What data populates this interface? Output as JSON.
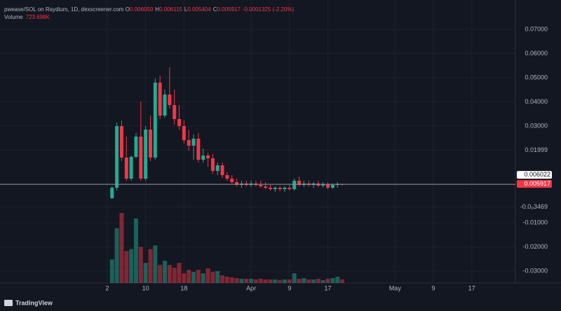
{
  "header": {
    "symbol": "pwease/SOL on Raydium, 1D, dexscreener.com",
    "ohlc": [
      {
        "key": "O",
        "value": "0.006050"
      },
      {
        "key": "H",
        "value": "0.006115"
      },
      {
        "key": "L",
        "value": "0.005404"
      },
      {
        "key": "C",
        "value": "0.005917"
      }
    ],
    "change": "-0.0001325 (-2.20%)",
    "volume_label": "Volume",
    "volume_value": "723.698K"
  },
  "price_labels": [
    "0.006022",
    "0.005917"
  ],
  "watermark": "TradingView",
  "chart_data": {
    "type": "candlestick",
    "x": [
      3,
      4,
      5,
      6,
      7,
      8,
      9,
      10,
      11,
      12,
      13,
      14,
      15,
      16,
      17,
      18,
      19,
      20,
      21,
      22,
      23,
      24,
      25,
      26,
      27,
      28,
      29,
      30,
      31,
      32,
      33,
      34,
      35,
      36,
      37,
      38,
      39,
      40,
      41,
      42,
      43,
      44,
      45,
      46,
      47,
      48,
      49,
      50,
      51
    ],
    "open": [
      0.00014,
      0.00449,
      0.03,
      0.01696,
      0.00826,
      0.01725,
      0.02565,
      0.00826,
      0.02855,
      0.01696,
      0.04797,
      0.03435,
      0.04304,
      0.0387,
      0.0329,
      0.03,
      0.0242,
      0.02188,
      0.02478,
      0.01609,
      0.01783,
      0.01667,
      0.01145,
      0.01377,
      0.00971,
      0.00826,
      0.00681,
      0.00565,
      0.00623,
      0.00565,
      0.00623,
      0.00565,
      0.00507,
      0.00449,
      0.00391,
      0.00449,
      0.00391,
      0.00449,
      0.00391,
      0.00739,
      0.00565,
      0.00623,
      0.00565,
      0.00623,
      0.00536,
      0.00594,
      0.00449,
      0.00565,
      0.00605
    ],
    "high": [
      0.00507,
      0.03145,
      0.03232,
      0.02565,
      0.01783,
      0.0271,
      0.04014,
      0.03,
      0.03435,
      0.04971,
      0.05087,
      0.04507,
      0.05435,
      0.04507,
      0.0387,
      0.03232,
      0.02855,
      0.02652,
      0.0271,
      0.02072,
      0.01899,
      0.01841,
      0.01493,
      0.01493,
      0.01087,
      0.00971,
      0.00826,
      0.00739,
      0.00739,
      0.00739,
      0.00739,
      0.00739,
      0.00681,
      0.00565,
      0.00507,
      0.00507,
      0.00507,
      0.00565,
      0.00826,
      0.00913,
      0.00739,
      0.00739,
      0.00681,
      0.00739,
      0.00681,
      0.00681,
      0.00623,
      0.00681,
      0.006115
    ],
    "low": [
      -0.00014,
      0.00333,
      0.01551,
      0.00739,
      0.00739,
      0.01667,
      0.00739,
      0.00739,
      0.01551,
      0.01609,
      0.0329,
      0.03348,
      0.03725,
      0.03058,
      0.02855,
      0.02275,
      0.01986,
      0.01609,
      0.01493,
      0.01493,
      0.01319,
      0.01029,
      0.00971,
      0.00855,
      0.00739,
      0.00623,
      0.00507,
      0.00449,
      0.00507,
      0.00478,
      0.00507,
      0.00449,
      0.00391,
      0.00333,
      0.00275,
      0.00304,
      0.00275,
      0.00333,
      0.00333,
      0.00507,
      0.00478,
      0.00507,
      0.00449,
      0.00478,
      0.00449,
      0.00391,
      0.00391,
      0.00449,
      0.005404
    ],
    "close": [
      0.00449,
      0.03,
      0.01696,
      0.00826,
      0.01725,
      0.02565,
      0.00826,
      0.02855,
      0.01696,
      0.04797,
      0.03435,
      0.04304,
      0.0387,
      0.0329,
      0.03,
      0.0242,
      0.02188,
      0.02478,
      0.01609,
      0.01783,
      0.01667,
      0.01145,
      0.01377,
      0.00971,
      0.00826,
      0.00681,
      0.00565,
      0.00623,
      0.00565,
      0.00623,
      0.00565,
      0.00507,
      0.00449,
      0.00391,
      0.00449,
      0.00391,
      0.00449,
      0.00391,
      0.00739,
      0.00565,
      0.00623,
      0.00565,
      0.00623,
      0.00536,
      0.00594,
      0.00449,
      0.00565,
      0.00605,
      0.005917
    ],
    "volume": [
      4930000,
      11455000,
      14645000,
      6670000,
      7105000,
      13485000,
      7540000,
      4205000,
      7105000,
      7830000,
      3770000,
      4640000,
      3770000,
      3190000,
      4205000,
      2030000,
      2755000,
      2320000,
      2755000,
      2030000,
      3045000,
      2320000,
      2465000,
      1595000,
      1305000,
      1160000,
      1015000,
      870000,
      870000,
      870000,
      725000,
      870000,
      725000,
      725000,
      725000,
      580000,
      725000,
      725000,
      2030000,
      870000,
      1015000,
      725000,
      725000,
      870000,
      580000,
      870000,
      1015000,
      1305000,
      723698
    ],
    "up_color": "#22ab94",
    "down_color": "#f23645",
    "xlim": [
      -20.36,
      87.1
    ],
    "xticks": [
      {
        "value": 2,
        "label": "2"
      },
      {
        "value": 10,
        "label": "10"
      },
      {
        "value": 18,
        "label": "18"
      },
      {
        "value": 32,
        "label": "Apr"
      },
      {
        "value": 40,
        "label": "9"
      },
      {
        "value": 48,
        "label": "17"
      },
      {
        "value": 62,
        "label": "May"
      },
      {
        "value": 70,
        "label": "9"
      },
      {
        "value": 78,
        "label": "17"
      }
    ],
    "ylim": [
      -0.03493,
      0.08218
    ],
    "yticks": [
      {
        "value": 0.07,
        "label": "0.07000"
      },
      {
        "value": 0.06,
        "label": "0.06000"
      },
      {
        "value": 0.05,
        "label": "0.05000"
      },
      {
        "value": 0.04,
        "label": "0.04000"
      },
      {
        "value": 0.03,
        "label": "0.03000"
      },
      0.01999,
      {
        "value": -0.003469,
        "label": "-0.0₀3469"
      },
      {
        "value": -0.01,
        "label": "-0.01000"
      },
      {
        "value": -0.02,
        "label": "-0.02000"
      },
      {
        "value": -0.03,
        "label": "-0.03000"
      }
    ],
    "grid": true
  }
}
